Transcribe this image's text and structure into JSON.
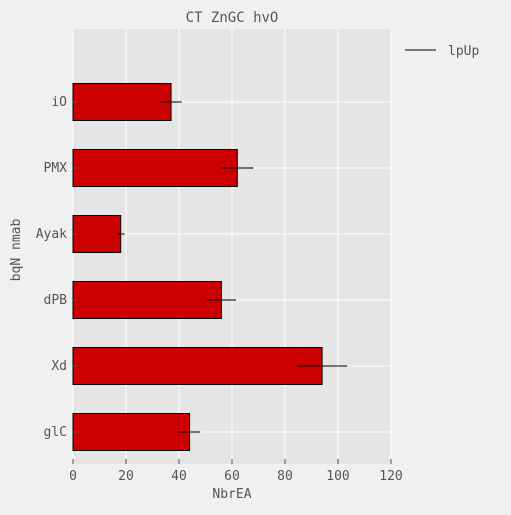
{
  "chart_data": {
    "type": "bar",
    "orientation": "horizontal",
    "title": "CT  ZnGC  hvO",
    "xlabel": "NbrEA",
    "ylabel": "bqN nmab",
    "categories": [
      "iO",
      "PMX",
      "Ayak",
      "dPB",
      "Xd",
      "glC"
    ],
    "series": [
      {
        "name": "lpUp",
        "values": [
          37,
          62,
          18,
          56,
          94,
          44
        ],
        "errors": [
          4,
          6,
          1.5,
          5.5,
          9.5,
          4
        ]
      }
    ],
    "xlim": [
      0,
      120
    ],
    "xticks": [
      0,
      20,
      40,
      60,
      80,
      100,
      120
    ],
    "grid": true,
    "legend": "top-right",
    "colors": {
      "bar": "#cc0000",
      "plot_bg": "#e5e5e5",
      "page_bg": "#f0f0f0",
      "grid": "#ffffff",
      "text": "#555555"
    }
  }
}
